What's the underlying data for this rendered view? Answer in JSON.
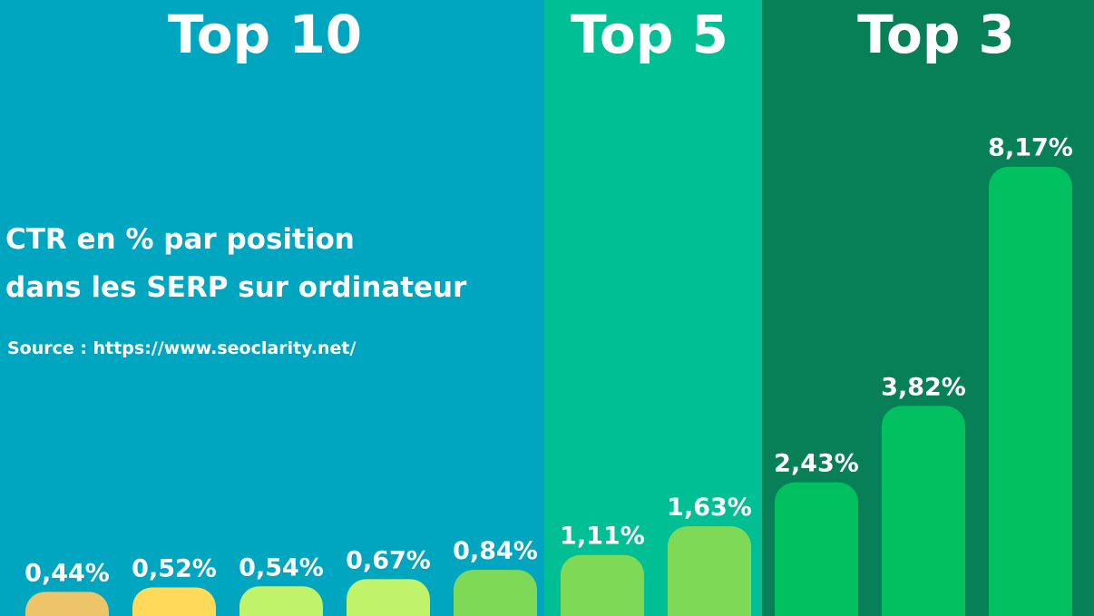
{
  "chart_data": {
    "type": "bar",
    "title": [
      "CTR en % par position",
      "dans les SERP sur ordinateur"
    ],
    "source": "Source : https://www.seoclarity.net/",
    "sections": [
      "Top 10",
      "Top 5",
      "Top 3"
    ],
    "values": [
      0.44,
      0.52,
      0.54,
      0.67,
      0.84,
      1.11,
      1.63,
      2.43,
      3.82,
      8.17
    ],
    "value_labels": [
      "0,44%",
      "0,52%",
      "0,54%",
      "0,67%",
      "0,84%",
      "1,11%",
      "1,63%",
      "2,43%",
      "3,82%",
      "8,17%"
    ],
    "colors": [
      "#edc468",
      "#ffd95a",
      "#c1f36a",
      "#c1f36a",
      "#7ed957",
      "#7ed957",
      "#7ed957",
      "#00c05f",
      "#00c05f",
      "#00c05f"
    ],
    "ylim": [
      0,
      11.2
    ]
  }
}
